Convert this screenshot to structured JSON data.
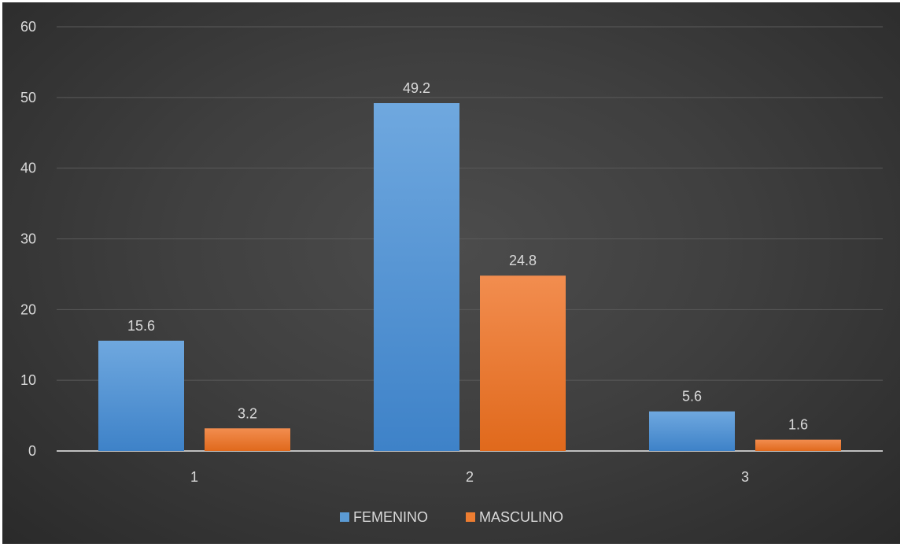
{
  "chart_data": {
    "type": "bar",
    "categories": [
      "1",
      "2",
      "3"
    ],
    "series": [
      {
        "name": "FEMENINO",
        "values": [
          15.6,
          49.2,
          5.6
        ],
        "color": "#5b9bd5"
      },
      {
        "name": "MASCULINO",
        "values": [
          3.2,
          24.8,
          1.6
        ],
        "color": "#ed7d31"
      }
    ],
    "y_ticks": [
      "0",
      "10",
      "20",
      "30",
      "40",
      "50",
      "60"
    ],
    "ylim": [
      0,
      60
    ],
    "grid": true,
    "legend_position": "bottom",
    "data_labels": true,
    "background": "#404040"
  }
}
